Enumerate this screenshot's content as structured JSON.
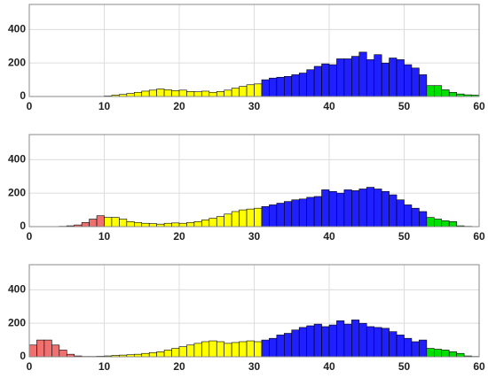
{
  "chart_data": [
    {
      "type": "histogram",
      "xlim": [
        0,
        60
      ],
      "ylim": [
        0,
        550
      ],
      "xticks": [
        0,
        10,
        20,
        30,
        40,
        50,
        60
      ],
      "yticks": [
        0,
        200,
        400
      ],
      "grid": true,
      "groups": [
        {
          "color": "#ffff00",
          "bins": [
            10,
            11,
            12,
            13,
            14,
            15,
            16,
            17,
            18,
            19,
            20,
            21,
            22,
            23,
            24,
            25,
            26,
            27,
            28,
            29,
            30,
            31
          ],
          "counts": [
            3,
            8,
            12,
            18,
            25,
            32,
            38,
            45,
            40,
            35,
            38,
            30,
            28,
            32,
            25,
            30,
            38,
            50,
            60,
            70,
            75
          ]
        },
        {
          "color": "#1f1fff",
          "bins": [
            31,
            32,
            33,
            34,
            35,
            36,
            37,
            38,
            39,
            40,
            41,
            42,
            43,
            44,
            45,
            46,
            47,
            48,
            49,
            50,
            51,
            52,
            53
          ],
          "counts": [
            100,
            110,
            115,
            120,
            130,
            140,
            160,
            180,
            195,
            190,
            225,
            225,
            240,
            265,
            220,
            250,
            200,
            230,
            220,
            190,
            170,
            130
          ]
        },
        {
          "color": "#00e000",
          "bins": [
            53,
            54,
            55,
            56,
            57,
            58,
            59,
            60
          ],
          "counts": [
            65,
            65,
            40,
            25,
            15,
            10,
            8
          ]
        }
      ]
    },
    {
      "type": "histogram",
      "xlim": [
        0,
        60
      ],
      "ylim": [
        0,
        550
      ],
      "xticks": [
        0,
        10,
        20,
        30,
        40,
        50,
        60
      ],
      "yticks": [
        0,
        200,
        400
      ],
      "grid": true,
      "groups": [
        {
          "color": "#f07070",
          "bins": [
            4,
            5,
            6,
            7,
            8,
            9,
            10
          ],
          "counts": [
            2,
            5,
            10,
            25,
            45,
            65
          ]
        },
        {
          "color": "#ffff00",
          "bins": [
            10,
            11,
            12,
            13,
            14,
            15,
            16,
            17,
            18,
            19,
            20,
            21,
            22,
            23,
            24,
            25,
            26,
            27,
            28,
            29,
            30,
            31
          ],
          "counts": [
            55,
            55,
            45,
            30,
            25,
            20,
            18,
            15,
            20,
            22,
            20,
            25,
            30,
            40,
            50,
            60,
            75,
            90,
            100,
            105,
            110
          ]
        },
        {
          "color": "#1f1fff",
          "bins": [
            31,
            32,
            33,
            34,
            35,
            36,
            37,
            38,
            39,
            40,
            41,
            42,
            43,
            44,
            45,
            46,
            47,
            48,
            49,
            50,
            51,
            52,
            53
          ],
          "counts": [
            120,
            130,
            140,
            150,
            160,
            165,
            175,
            180,
            220,
            210,
            200,
            220,
            215,
            225,
            235,
            225,
            210,
            190,
            160,
            130,
            110,
            90
          ]
        },
        {
          "color": "#00e000",
          "bins": [
            53,
            54,
            55,
            56,
            57,
            58,
            59,
            60
          ],
          "counts": [
            55,
            45,
            35,
            30,
            5,
            2,
            1
          ]
        }
      ]
    },
    {
      "type": "histogram",
      "xlim": [
        0,
        60
      ],
      "ylim": [
        0,
        550
      ],
      "xticks": [
        0,
        10,
        20,
        30,
        40,
        50,
        60
      ],
      "yticks": [
        0,
        200,
        400
      ],
      "grid": true,
      "groups": [
        {
          "color": "#f07070",
          "bins": [
            0,
            1,
            2,
            3,
            4,
            5,
            6,
            7
          ],
          "counts": [
            70,
            100,
            100,
            70,
            40,
            15,
            5
          ]
        },
        {
          "color": "#ffff00",
          "bins": [
            7,
            8,
            9,
            10,
            11,
            12,
            13,
            14,
            15,
            16,
            17,
            18,
            19,
            20,
            21,
            22,
            23,
            24,
            25,
            26,
            27,
            28,
            29,
            30,
            31
          ],
          "counts": [
            2,
            2,
            3,
            5,
            8,
            10,
            12,
            15,
            20,
            25,
            30,
            40,
            50,
            60,
            70,
            80,
            90,
            95,
            90,
            80,
            85,
            90,
            95,
            90
          ]
        },
        {
          "color": "#1f1fff",
          "bins": [
            31,
            32,
            33,
            34,
            35,
            36,
            37,
            38,
            39,
            40,
            41,
            42,
            43,
            44,
            45,
            46,
            47,
            48,
            49,
            50,
            51,
            52,
            53
          ],
          "counts": [
            100,
            110,
            130,
            140,
            160,
            175,
            185,
            195,
            180,
            190,
            215,
            195,
            220,
            200,
            180,
            175,
            170,
            150,
            130,
            110,
            90,
            100
          ]
        },
        {
          "color": "#00e000",
          "bins": [
            53,
            54,
            55,
            56,
            57,
            58,
            59,
            60
          ],
          "counts": [
            50,
            45,
            40,
            30,
            20,
            5,
            2
          ]
        }
      ]
    }
  ]
}
